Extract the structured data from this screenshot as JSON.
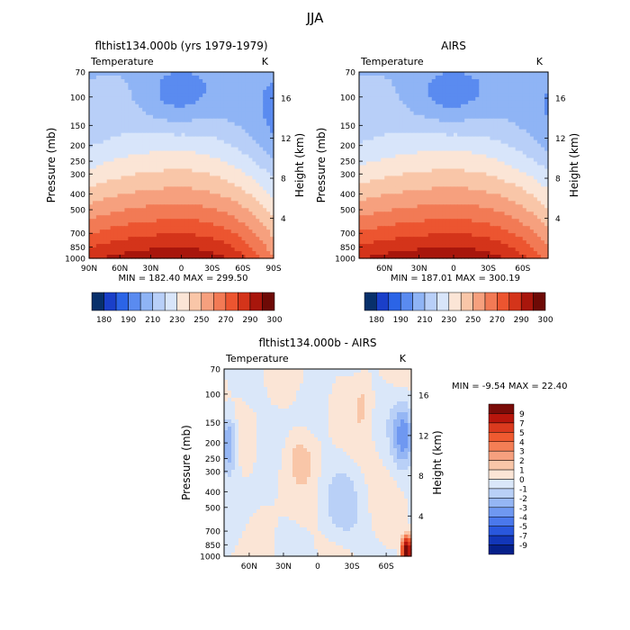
{
  "page_title": "JJA",
  "chart_data": [
    {
      "type": "heatmap",
      "title": "flthist134.000b (yrs 1979-1979)",
      "subtitle": "Temperature",
      "units": "K",
      "xlabel": "",
      "ylabel": "Pressure (mb)",
      "y2label": "Height (km)",
      "x_ticks": [
        "90N",
        "60N",
        "30N",
        "0",
        "30S",
        "60S",
        "90S"
      ],
      "y_ticks": [
        70,
        100,
        150,
        200,
        250,
        300,
        400,
        500,
        700,
        850,
        1000
      ],
      "y2_ticks": [
        4,
        8,
        12,
        16
      ],
      "min_max_text": "MIN = 182.40   MAX = 299.50",
      "min": 182.4,
      "max": 299.5,
      "colorbar_labels": [
        "180",
        "190",
        "210",
        "230",
        "250",
        "270",
        "290",
        "300"
      ],
      "colorbar_colors": [
        "#08306b",
        "#1a3fc9",
        "#2b64e6",
        "#5a8bf0",
        "#8fb4f5",
        "#b8cff8",
        "#d8e5fa",
        "#fbe5d6",
        "#f9c6a8",
        "#f6a07e",
        "#f27a55",
        "#ec5530",
        "#d4341a",
        "#a8160c",
        "#6e0a06"
      ]
    },
    {
      "type": "heatmap",
      "title": "AIRS",
      "subtitle": "Temperature",
      "units": "K",
      "xlabel": "",
      "ylabel": "Pressure (mb)",
      "y2label": "Height (km)",
      "x_ticks": [
        "60N",
        "30N",
        "0",
        "30S",
        "60S"
      ],
      "y_ticks": [
        70,
        100,
        150,
        200,
        250,
        300,
        400,
        500,
        700,
        850,
        1000
      ],
      "y2_ticks": [
        4,
        8,
        12,
        16
      ],
      "min_max_text": "MIN = 187.01   MAX = 300.19",
      "min": 187.01,
      "max": 300.19,
      "colorbar_labels": [
        "180",
        "190",
        "210",
        "230",
        "250",
        "270",
        "290",
        "300"
      ],
      "colorbar_colors": [
        "#08306b",
        "#1a3fc9",
        "#2b64e6",
        "#5a8bf0",
        "#8fb4f5",
        "#b8cff8",
        "#d8e5fa",
        "#fbe5d6",
        "#f9c6a8",
        "#f6a07e",
        "#f27a55",
        "#ec5530",
        "#d4341a",
        "#a8160c",
        "#6e0a06"
      ]
    },
    {
      "type": "heatmap",
      "title": "flthist134.000b - AIRS",
      "subtitle": "Temperature",
      "units": "K",
      "xlabel": "",
      "ylabel": "Pressure (mb)",
      "y2label": "Height (km)",
      "x_ticks": [
        "60N",
        "30N",
        "0",
        "30S",
        "60S"
      ],
      "y_ticks": [
        70,
        100,
        150,
        200,
        250,
        300,
        400,
        500,
        700,
        850,
        1000
      ],
      "y2_ticks": [
        4,
        8,
        12,
        16
      ],
      "min_max_text": "MIN =  -9.54   MAX =  22.40",
      "min": -9.54,
      "max": 22.4,
      "colorbar_labels": [
        "9",
        "7",
        "5",
        "4",
        "3",
        "2",
        "1",
        "0",
        "-1",
        "-2",
        "-3",
        "-4",
        "-5",
        "-7",
        "-9"
      ],
      "colorbar_colors": [
        "#7a0c08",
        "#b8160c",
        "#db3a1e",
        "#ef5a30",
        "#f47e55",
        "#f6a07e",
        "#f9c6a8",
        "#fbe5d6",
        "#dae7f9",
        "#b9d0f7",
        "#95b6f4",
        "#6f98f1",
        "#4a78ec",
        "#2957dd",
        "#1236b8",
        "#06208a"
      ]
    }
  ]
}
